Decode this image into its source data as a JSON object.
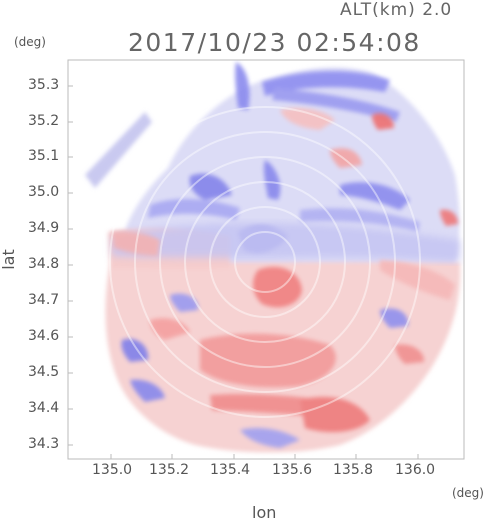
{
  "header": {
    "altitude_label": "ALT(km) 2.0",
    "datetime": "2017/10/23 02:54:08"
  },
  "axes": {
    "x_unit": "(deg)",
    "y_unit": "(deg)",
    "x_title": "lon",
    "y_title": "lat",
    "x_ticks": [
      "135.0",
      "135.2",
      "135.4",
      "135.6",
      "135.8",
      "136.0"
    ],
    "y_ticks": [
      "35.3",
      "35.2",
      "35.1",
      "35.0",
      "34.9",
      "34.8",
      "34.7",
      "34.6",
      "34.5",
      "34.4",
      "34.3"
    ]
  },
  "map": {
    "radar_center": {
      "lon": 135.52,
      "lat": 34.81
    },
    "xlim": [
      134.88,
      136.17
    ],
    "ylim": [
      34.27,
      35.34
    ],
    "colors": {
      "approaching": "#6a6ae8",
      "receding": "#f27070",
      "near_zero": "#f2f2f8",
      "frame": "#bbbbbb"
    }
  }
}
